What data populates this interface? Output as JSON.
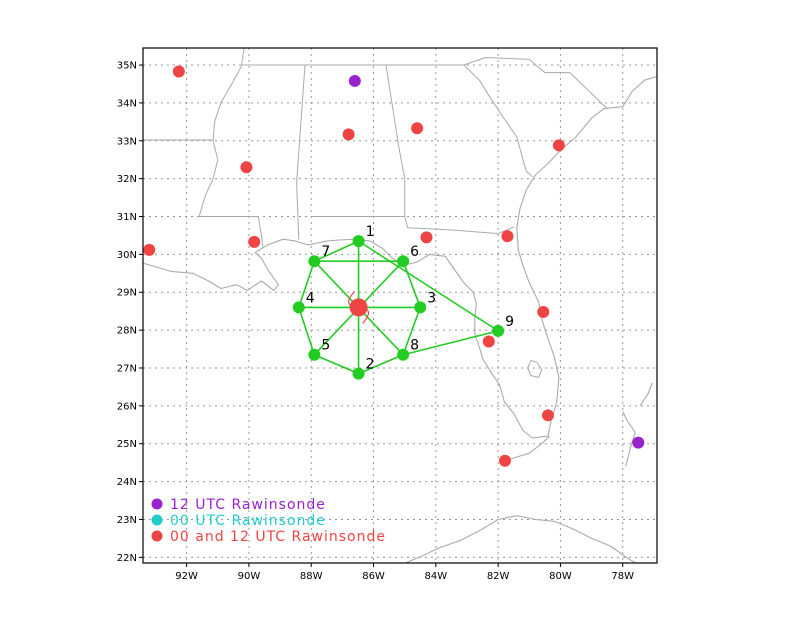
{
  "axes": {
    "lon_ticks": [
      {
        "lon": -92,
        "label": "92W"
      },
      {
        "lon": -90,
        "label": "90W"
      },
      {
        "lon": -88,
        "label": "88W"
      },
      {
        "lon": -86,
        "label": "86W"
      },
      {
        "lon": -84,
        "label": "84W"
      },
      {
        "lon": -82,
        "label": "82W"
      },
      {
        "lon": -80,
        "label": "80W"
      },
      {
        "lon": -78,
        "label": "78W"
      }
    ],
    "lat_ticks": [
      {
        "lat": 22,
        "label": "22N"
      },
      {
        "lat": 23,
        "label": "23N"
      },
      {
        "lat": 24,
        "label": "24N"
      },
      {
        "lat": 25,
        "label": "25N"
      },
      {
        "lat": 26,
        "label": "26N"
      },
      {
        "lat": 27,
        "label": "27N"
      },
      {
        "lat": 28,
        "label": "28N"
      },
      {
        "lat": 29,
        "label": "29N"
      },
      {
        "lat": 30,
        "label": "30N"
      },
      {
        "lat": 31,
        "label": "31N"
      },
      {
        "lat": 32,
        "label": "32N"
      },
      {
        "lat": 33,
        "label": "33N"
      },
      {
        "lat": 34,
        "label": "34N"
      },
      {
        "lat": 35,
        "label": "35N"
      }
    ],
    "lon_range": [
      -93.4,
      -76.9
    ],
    "lat_range": [
      21.85,
      35.45
    ],
    "grid": true
  },
  "colors": {
    "grid": "#999999",
    "coast": "#aaaaaa",
    "network": "#22cc22",
    "center": "#ee4444",
    "purple": "#9922cc",
    "cyan": "#22cccc",
    "red": "#ee4444"
  },
  "network": {
    "center": {
      "lon": -86.48,
      "lat": 28.6
    },
    "nodes": [
      {
        "id": "1",
        "label": "1",
        "lon": -86.48,
        "lat": 30.35
      },
      {
        "id": "2",
        "label": "2",
        "lon": -86.48,
        "lat": 26.85
      },
      {
        "id": "3",
        "label": "3",
        "lon": -84.5,
        "lat": 28.6
      },
      {
        "id": "4",
        "label": "4",
        "lon": -88.4,
        "lat": 28.6
      },
      {
        "id": "5",
        "label": "5",
        "lon": -87.9,
        "lat": 27.35
      },
      {
        "id": "6",
        "label": "6",
        "lon": -85.05,
        "lat": 29.82
      },
      {
        "id": "7",
        "label": "7",
        "lon": -87.9,
        "lat": 29.82
      },
      {
        "id": "8",
        "label": "8",
        "lon": -85.05,
        "lat": 27.35
      },
      {
        "id": "9",
        "label": "9",
        "lon": -82.0,
        "lat": 27.98
      }
    ],
    "edges": [
      [
        "1",
        "2"
      ],
      [
        "4",
        "3"
      ],
      [
        "7",
        "8"
      ],
      [
        "6",
        "5"
      ],
      [
        "7",
        "6"
      ],
      [
        "1",
        "7"
      ],
      [
        "1",
        "9"
      ],
      [
        "7",
        "4"
      ],
      [
        "4",
        "5"
      ],
      [
        "5",
        "2"
      ],
      [
        "2",
        "8"
      ],
      [
        "8",
        "3"
      ],
      [
        "3",
        "6"
      ],
      [
        "8",
        "9"
      ]
    ]
  },
  "stations": [
    {
      "type": "purple",
      "lon": -86.6,
      "lat": 34.58
    },
    {
      "type": "purple",
      "lon": -77.5,
      "lat": 25.03
    },
    {
      "type": "red",
      "lon": -92.25,
      "lat": 34.83
    },
    {
      "type": "red",
      "lon": -90.08,
      "lat": 32.3
    },
    {
      "type": "red",
      "lon": -86.8,
      "lat": 33.17
    },
    {
      "type": "red",
      "lon": -84.6,
      "lat": 33.33
    },
    {
      "type": "red",
      "lon": -80.05,
      "lat": 32.88
    },
    {
      "type": "red",
      "lon": -93.2,
      "lat": 30.12
    },
    {
      "type": "red",
      "lon": -89.83,
      "lat": 30.33
    },
    {
      "type": "red",
      "lon": -84.3,
      "lat": 30.45
    },
    {
      "type": "red",
      "lon": -81.7,
      "lat": 30.48
    },
    {
      "type": "red",
      "lon": -80.55,
      "lat": 28.48
    },
    {
      "type": "red",
      "lon": -82.3,
      "lat": 27.7
    },
    {
      "type": "red",
      "lon": -80.4,
      "lat": 25.75
    },
    {
      "type": "red",
      "lon": -81.78,
      "lat": 24.55
    }
  ],
  "legend": [
    {
      "type": "purple",
      "label": "12 UTC Rawinsonde"
    },
    {
      "type": "cyan",
      "label": "00 UTC Rawinsonde"
    },
    {
      "type": "red",
      "label": "00 and 12 UTC Rawinsonde"
    }
  ],
  "coastline": [
    [
      [
        -93.4,
        29.77
      ],
      [
        -92.5,
        29.55
      ],
      [
        -91.8,
        29.5
      ],
      [
        -91.3,
        29.3
      ],
      [
        -90.9,
        29.1
      ],
      [
        -90.4,
        29.2
      ],
      [
        -90.05,
        29.05
      ],
      [
        -89.6,
        29.3
      ],
      [
        -89.2,
        29.05
      ],
      [
        -89.05,
        29.2
      ],
      [
        -89.4,
        29.6
      ],
      [
        -89.6,
        29.9
      ],
      [
        -89.8,
        30.05
      ],
      [
        -89.4,
        30.25
      ],
      [
        -88.9,
        30.4
      ],
      [
        -88.5,
        30.35
      ],
      [
        -88.1,
        30.25
      ],
      [
        -87.8,
        30.3
      ],
      [
        -87.5,
        30.35
      ],
      [
        -87.1,
        30.38
      ],
      [
        -86.6,
        30.4
      ],
      [
        -86.1,
        30.35
      ],
      [
        -85.7,
        30.15
      ],
      [
        -85.4,
        29.9
      ],
      [
        -85.0,
        29.72
      ],
      [
        -84.6,
        29.8
      ],
      [
        -84.2,
        30.0
      ],
      [
        -83.7,
        29.95
      ],
      [
        -83.4,
        29.6
      ],
      [
        -83.1,
        29.25
      ],
      [
        -82.8,
        29.0
      ],
      [
        -82.7,
        28.7
      ],
      [
        -82.75,
        28.3
      ],
      [
        -82.75,
        27.9
      ],
      [
        -82.6,
        27.55
      ],
      [
        -82.5,
        27.25
      ],
      [
        -82.2,
        26.85
      ],
      [
        -81.95,
        26.55
      ],
      [
        -81.8,
        26.1
      ],
      [
        -81.5,
        25.8
      ],
      [
        -81.2,
        25.35
      ],
      [
        -80.9,
        25.15
      ],
      [
        -80.4,
        25.2
      ],
      [
        -80.3,
        25.6
      ],
      [
        -80.12,
        26.1
      ],
      [
        -80.05,
        26.75
      ],
      [
        -80.2,
        27.3
      ],
      [
        -80.45,
        27.9
      ],
      [
        -80.6,
        28.3
      ],
      [
        -80.7,
        28.75
      ],
      [
        -81.0,
        29.25
      ],
      [
        -81.2,
        29.7
      ],
      [
        -81.35,
        30.1
      ],
      [
        -81.4,
        30.7
      ],
      [
        -81.3,
        31.2
      ],
      [
        -81.1,
        31.7
      ],
      [
        -80.8,
        32.1
      ],
      [
        -80.4,
        32.4
      ],
      [
        -80.0,
        32.75
      ],
      [
        -79.5,
        33.1
      ],
      [
        -79.0,
        33.6
      ],
      [
        -78.6,
        33.85
      ],
      [
        -78.0,
        33.9
      ],
      [
        -77.7,
        34.3
      ],
      [
        -77.3,
        34.6
      ],
      [
        -76.9,
        34.7
      ]
    ],
    [
      [
        -81.8,
        24.55
      ],
      [
        -81.4,
        24.65
      ],
      [
        -81.0,
        24.75
      ],
      [
        -80.6,
        25.0
      ],
      [
        -80.35,
        25.2
      ]
    ],
    [
      [
        -84.95,
        21.86
      ],
      [
        -84.4,
        22.05
      ],
      [
        -83.9,
        22.25
      ],
      [
        -83.2,
        22.45
      ],
      [
        -82.6,
        22.7
      ],
      [
        -82.0,
        23.0
      ],
      [
        -81.4,
        23.1
      ],
      [
        -80.8,
        23.0
      ],
      [
        -80.2,
        22.95
      ],
      [
        -79.6,
        22.75
      ],
      [
        -79.0,
        22.5
      ],
      [
        -78.4,
        22.3
      ],
      [
        -77.8,
        21.95
      ],
      [
        -77.6,
        21.86
      ]
    ],
    [
      [
        -77.9,
        24.4
      ],
      [
        -77.75,
        24.9
      ],
      [
        -77.6,
        25.3
      ],
      [
        -77.85,
        25.6
      ],
      [
        -78.0,
        25.85
      ]
    ],
    [
      [
        -77.45,
        26.0
      ],
      [
        -77.2,
        26.3
      ],
      [
        -77.05,
        26.6
      ]
    ]
  ],
  "state_borders": [
    [
      [
        -91.15,
        33.0
      ],
      [
        -91.1,
        33.5
      ],
      [
        -90.9,
        34.0
      ],
      [
        -90.55,
        34.5
      ],
      [
        -90.25,
        34.95
      ],
      [
        -90.15,
        35.45
      ]
    ],
    [
      [
        -91.6,
        31.0
      ],
      [
        -91.4,
        31.55
      ],
      [
        -91.15,
        32.0
      ],
      [
        -91.0,
        32.5
      ],
      [
        -91.15,
        33.0
      ]
    ],
    [
      [
        -93.4,
        33.02
      ],
      [
        -91.15,
        33.02
      ]
    ],
    [
      [
        -91.6,
        31.0
      ],
      [
        -89.7,
        31.0
      ],
      [
        -89.6,
        30.5
      ],
      [
        -89.55,
        30.2
      ]
    ],
    [
      [
        -90.3,
        35.0
      ],
      [
        -88.2,
        35.0
      ],
      [
        -85.6,
        35.0
      ],
      [
        -84.3,
        35.0
      ],
      [
        -83.1,
        35.0
      ],
      [
        -82.4,
        35.2
      ],
      [
        -81.0,
        35.15
      ],
      [
        -80.5,
        34.8
      ],
      [
        -79.7,
        34.8
      ],
      [
        -78.5,
        33.85
      ]
    ],
    [
      [
        -88.47,
        31.9
      ],
      [
        -88.2,
        35.0
      ]
    ],
    [
      [
        -88.47,
        31.9
      ],
      [
        -88.4,
        30.38
      ]
    ],
    [
      [
        -85.6,
        35.0
      ],
      [
        -85.2,
        32.9
      ],
      [
        -85.0,
        32.0
      ],
      [
        -85.0,
        31.0
      ]
    ],
    [
      [
        -88.0,
        31.0
      ],
      [
        -87.6,
        31.0
      ],
      [
        -85.0,
        31.0
      ]
    ],
    [
      [
        -85.0,
        31.0
      ],
      [
        -84.9,
        30.7
      ],
      [
        -84.3,
        30.68
      ],
      [
        -83.4,
        30.64
      ],
      [
        -82.5,
        30.58
      ],
      [
        -82.0,
        30.55
      ],
      [
        -81.5,
        30.72
      ]
    ],
    [
      [
        -83.1,
        35.0
      ],
      [
        -82.6,
        34.6
      ],
      [
        -82.3,
        34.2
      ],
      [
        -81.9,
        33.7
      ],
      [
        -81.4,
        33.1
      ],
      [
        -81.1,
        32.2
      ],
      [
        -80.9,
        32.05
      ]
    ]
  ],
  "lakes": [
    [
      [
        -80.95,
        27.2
      ],
      [
        -80.75,
        27.15
      ],
      [
        -80.6,
        26.95
      ],
      [
        -80.7,
        26.75
      ],
      [
        -80.95,
        26.8
      ],
      [
        -81.05,
        27.0
      ],
      [
        -80.95,
        27.2
      ]
    ]
  ]
}
